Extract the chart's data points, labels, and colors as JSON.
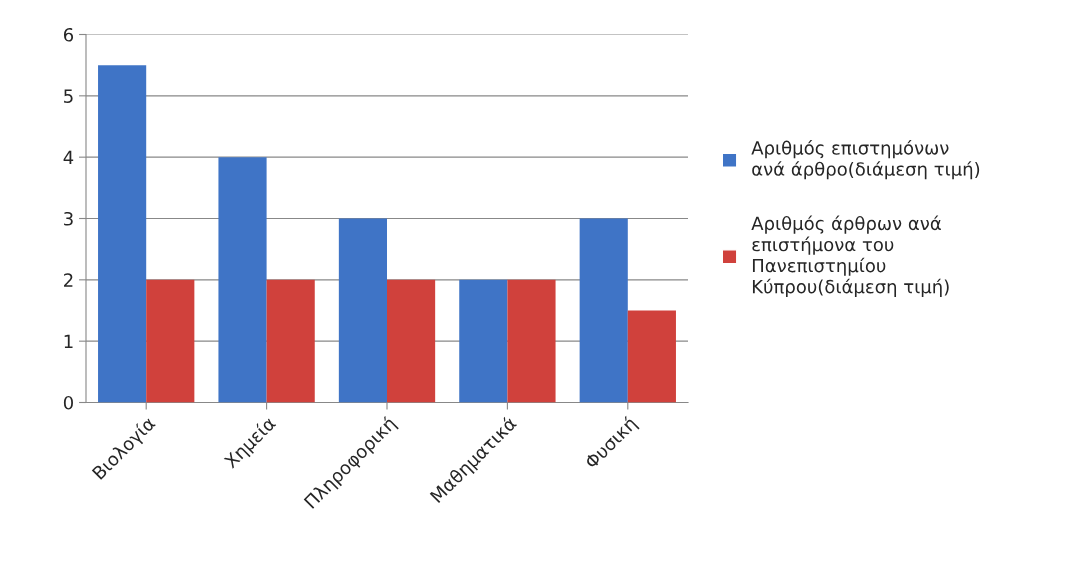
{
  "chart_data": {
    "type": "bar",
    "categories": [
      "Βιολογία",
      "Χημεία",
      "Πληροφορική",
      "Μαθηματικά",
      "Φυσική"
    ],
    "series": [
      {
        "name": "Αριθμός επιστημόνων\nανά άρθρο(διάμεση τιμή)",
        "color": "#3f74c6",
        "values": [
          5.5,
          4,
          3,
          2,
          3
        ]
      },
      {
        "name": "Αριθμός άρθρων ανά\nεπιστήμονα του\nΠανεπιστημίου\nΚύπρου(διάμεση τιμή)",
        "color": "#d0413c",
        "values": [
          2,
          2,
          2,
          2,
          1.5
        ]
      }
    ],
    "ylim": [
      0,
      6
    ],
    "yticks": [
      0,
      1,
      2,
      3,
      4,
      5,
      6
    ],
    "grid": "y",
    "legend": "right"
  }
}
